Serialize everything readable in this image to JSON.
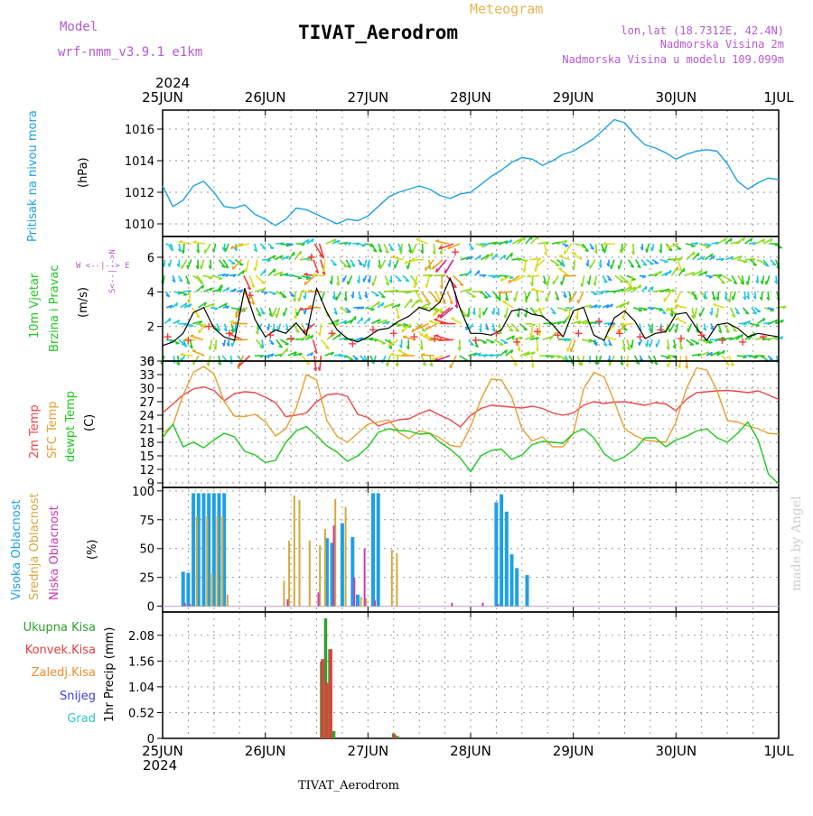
{
  "header": {
    "model_label": "Model",
    "model_name": "wrf-nmm_v3.9.1  e1km",
    "meteogram_label": "Meteogram",
    "station_title": "TIVAT_Aerodrom",
    "lonlat": "lon,lat (18.7312E, 42.4N)",
    "altitude": "Nadmorska Visina 2m",
    "model_altitude": "Nadmorska Visina u modelu 109.099m",
    "year": "2024",
    "footer_station": "TIVAT_Aerodrom",
    "credit": "made by Angel"
  },
  "colors": {
    "pressure": "#1ea0e6",
    "wind_label": "#1ec81e",
    "wind_speed": "#000000",
    "gust": "#f03c3c",
    "t2m": "#f04646",
    "sfc": "#e6a032",
    "dewpoint": "#1ec81e",
    "cloud_high": "#1ea0e6",
    "cloud_mid": "#d2aa3c",
    "cloud_low": "#c83cb4",
    "precip_total": "#2ea02e",
    "precip_conv": "#e63c3c",
    "precip_frozen": "#f08c28",
    "snow": "#3c3cdc",
    "grad": "#28c8c8",
    "header_purple": "#b45ad2",
    "header_orange": "#e6b450"
  },
  "x_axis": {
    "ticks": [
      "25JUN",
      "26JUN",
      "27JUN",
      "28JUN",
      "29JUN",
      "30JUN",
      "1JUL"
    ],
    "start": "2024-06-25",
    "end": "2024-07-01"
  },
  "panel_labels": {
    "pressure": {
      "name": "Pritisak na nivou mora",
      "unit": "(hPa)"
    },
    "wind": {
      "line1": "10m Vjetar",
      "line2": "Brzina i Pravac",
      "unit": "(m/s)",
      "compass_ns": "S<--|-->N",
      "compass_we": "W <--|--> E"
    },
    "temp": {
      "t2m": "2m Temp",
      "sfc": "SFC Temp",
      "dew": "dewpt Temp",
      "unit": "(C)"
    },
    "cloud": {
      "high": "Visoka Oblacnost",
      "mid": "Srednja Oblacnost",
      "low": "Niska Oblacnost",
      "unit": "(%)"
    },
    "precip": {
      "unit": "1hr Precip (mm)",
      "total": "Ukupna Kisa",
      "conv": "Konvek.Kisa",
      "frozen": "Zaledj.Kisa",
      "snow": "Snijeg",
      "grad": "Grad"
    }
  },
  "chart_data": [
    {
      "type": "line",
      "name": "pressure",
      "ylabel": "(hPa)",
      "ylim": [
        1009.2,
        1017.2
      ],
      "yticks": [
        "1010",
        "1012",
        "1014",
        "1016"
      ],
      "ytick_values": [
        1010,
        1012,
        1014,
        1016
      ],
      "x_days": [
        0,
        0.1,
        0.2,
        0.3,
        0.4,
        0.5,
        0.6,
        0.7,
        0.8,
        0.9,
        1.0,
        1.1,
        1.2,
        1.3,
        1.4,
        1.5,
        1.6,
        1.7,
        1.8,
        1.9,
        2.0,
        2.1,
        2.2,
        2.3,
        2.4,
        2.5,
        2.6,
        2.7,
        2.8,
        2.9,
        3.0,
        3.1,
        3.2,
        3.3,
        3.4,
        3.5,
        3.6,
        3.7,
        3.8,
        3.9,
        4.0,
        4.1,
        4.2,
        4.3,
        4.4,
        4.5,
        4.6,
        4.7,
        4.8,
        4.9,
        5.0,
        5.1,
        5.2,
        5.3,
        5.4,
        5.5,
        5.6,
        5.7,
        5.8,
        5.9,
        6.0
      ],
      "values": [
        1012.4,
        1011.1,
        1011.5,
        1012.4,
        1012.7,
        1012.0,
        1011.1,
        1011.0,
        1011.2,
        1010.6,
        1010.3,
        1009.9,
        1010.3,
        1011.0,
        1010.9,
        1010.6,
        1010.3,
        1010.0,
        1010.3,
        1010.2,
        1010.5,
        1011.1,
        1011.7,
        1012.0,
        1012.2,
        1012.4,
        1012.2,
        1011.8,
        1011.6,
        1011.9,
        1012.0,
        1012.5,
        1013.0,
        1013.4,
        1013.9,
        1014.2,
        1014.1,
        1013.7,
        1014.0,
        1014.4,
        1014.6,
        1015.0,
        1015.4,
        1016.0,
        1016.6,
        1016.4,
        1015.6,
        1015.0,
        1014.8,
        1014.5,
        1014.1,
        1014.4,
        1014.6,
        1014.7,
        1014.6,
        1013.8,
        1012.7,
        1012.2,
        1012.6,
        1012.9,
        1012.8
      ]
    },
    {
      "type": "line",
      "name": "wind",
      "ylabel": "(m/s)",
      "ylim": [
        0,
        7.2
      ],
      "yticks": [
        "0",
        "2",
        "4",
        "6"
      ],
      "ytick_values": [
        0,
        2,
        4,
        6
      ],
      "series": [
        {
          "name": "wind speed",
          "x_days": [
            0,
            0.1,
            0.2,
            0.3,
            0.4,
            0.5,
            0.6,
            0.7,
            0.8,
            0.9,
            1.0,
            1.1,
            1.2,
            1.3,
            1.4,
            1.5,
            1.6,
            1.7,
            1.8,
            1.9,
            2.0,
            2.1,
            2.2,
            2.3,
            2.4,
            2.5,
            2.6,
            2.7,
            2.8,
            2.9,
            3.0,
            3.1,
            3.2,
            3.3,
            3.4,
            3.5,
            3.6,
            3.7,
            3.8,
            3.9,
            4.0,
            4.1,
            4.2,
            4.3,
            4.4,
            4.5,
            4.6,
            4.7,
            4.8,
            4.9,
            5.0,
            5.1,
            5.2,
            5.3,
            5.4,
            5.5,
            5.6,
            5.7,
            5.8,
            5.9,
            6.0
          ],
          "values": [
            0.9,
            1.1,
            1.6,
            2.8,
            3.1,
            1.9,
            1.4,
            1.2,
            4.2,
            2.4,
            1.4,
            1.8,
            1.6,
            2.2,
            1.5,
            4.2,
            2.8,
            1.8,
            1.3,
            1.1,
            1.4,
            1.8,
            1.9,
            2.3,
            2.6,
            3.1,
            2.9,
            3.4,
            4.8,
            3.0,
            1.6,
            1.6,
            1.5,
            1.8,
            2.9,
            3.0,
            2.7,
            2.6,
            2.1,
            1.4,
            2.9,
            3.1,
            1.5,
            1.2,
            2.5,
            2.9,
            2.3,
            1.3,
            1.6,
            1.7,
            2.7,
            2.8,
            1.9,
            1.2,
            2.1,
            2.2,
            1.9,
            1.4,
            1.6,
            1.5,
            1.4
          ]
        },
        {
          "name": "gust",
          "x_days": [
            0.05,
            0.25,
            0.45,
            0.65,
            0.85,
            1.05,
            1.25,
            1.45,
            1.65,
            1.85,
            2.05,
            2.25,
            2.45,
            2.65,
            2.85,
            3.05,
            3.25,
            3.45,
            3.65,
            3.85,
            4.05,
            4.25,
            4.45,
            4.65,
            4.85,
            5.05,
            5.25,
            5.45,
            5.65,
            5.85
          ],
          "values": [
            1.4,
            1.2,
            2.0,
            1.6,
            3.8,
            1.5,
            1.3,
            6.0,
            1.6,
            1.0,
            1.8,
            1.6,
            1.4,
            1.3,
            6.3,
            1.2,
            1.6,
            1.1,
            1.7,
            1.5,
            1.6,
            2.3,
            1.6,
            1.4,
            1.8,
            1.3,
            1.5,
            1.2,
            1.1,
            1.4
          ]
        }
      ]
    },
    {
      "type": "line",
      "name": "temperature",
      "ylabel": "(C)",
      "ylim": [
        8,
        36
      ],
      "yticks": [
        "9",
        "12",
        "15",
        "18",
        "21",
        "24",
        "27",
        "30",
        "33",
        "36"
      ],
      "ytick_values": [
        9,
        12,
        15,
        18,
        21,
        24,
        27,
        30,
        33,
        36
      ],
      "x_days": [
        0,
        0.1,
        0.2,
        0.3,
        0.4,
        0.5,
        0.6,
        0.7,
        0.8,
        0.9,
        1.0,
        1.1,
        1.2,
        1.3,
        1.4,
        1.5,
        1.6,
        1.7,
        1.8,
        1.9,
        2.0,
        2.1,
        2.2,
        2.3,
        2.4,
        2.5,
        2.6,
        2.7,
        2.8,
        2.9,
        3.0,
        3.1,
        3.2,
        3.3,
        3.4,
        3.5,
        3.6,
        3.7,
        3.8,
        3.9,
        4.0,
        4.1,
        4.2,
        4.3,
        4.4,
        4.5,
        4.6,
        4.7,
        4.8,
        4.9,
        5.0,
        5.1,
        5.2,
        5.3,
        5.4,
        5.5,
        5.6,
        5.7,
        5.8,
        5.9,
        6.0
      ],
      "series": [
        {
          "name": "2m Temp",
          "values": [
            24.5,
            26.5,
            28.5,
            29.8,
            30.3,
            29.5,
            27.2,
            28.8,
            29.2,
            29.0,
            28.0,
            26.8,
            23.7,
            24.0,
            24.5,
            27.0,
            28.5,
            28.8,
            28.2,
            24.2,
            23.5,
            21.6,
            22.4,
            23.0,
            23.2,
            24.3,
            25.2,
            24.0,
            23.0,
            21.4,
            24.0,
            25.5,
            26.2,
            26.0,
            25.8,
            25.6,
            26.0,
            25.5,
            24.5,
            24.0,
            24.5,
            26.2,
            27.0,
            26.6,
            26.9,
            27.0,
            26.6,
            26.2,
            26.8,
            26.5,
            25.0,
            27.5,
            29.0,
            29.2,
            29.4,
            29.5,
            29.3,
            29.0,
            29.4,
            28.5,
            27.5
          ]
        },
        {
          "name": "SFC Temp",
          "values": [
            20.0,
            21.8,
            28.5,
            33.5,
            34.8,
            33.2,
            27.0,
            23.8,
            23.7,
            24.2,
            22.6,
            19.4,
            21.0,
            25.5,
            33.0,
            31.8,
            22.8,
            19.3,
            18.0,
            20.0,
            22.0,
            22.5,
            23.0,
            20.2,
            18.8,
            20.6,
            20.0,
            19.0,
            17.3,
            17.0,
            21.5,
            27.5,
            32.0,
            31.8,
            28.0,
            21.0,
            18.3,
            19.2,
            17.0,
            17.0,
            20.0,
            29.8,
            33.5,
            32.5,
            27.0,
            21.0,
            19.5,
            18.5,
            18.2,
            18.0,
            22.5,
            29.8,
            34.5,
            34.0,
            29.5,
            22.8,
            22.5,
            21.6,
            21.0,
            20.0,
            19.8
          ]
        },
        {
          "name": "dewpt Temp",
          "values": [
            19.0,
            22.0,
            17.0,
            18.0,
            16.8,
            18.5,
            20.0,
            19.2,
            16.0,
            15.2,
            13.5,
            14.0,
            18.0,
            20.5,
            21.5,
            19.5,
            17.2,
            15.8,
            13.8,
            15.0,
            17.0,
            20.2,
            21.0,
            20.6,
            20.5,
            19.8,
            20.0,
            18.0,
            16.5,
            14.5,
            11.5,
            15.0,
            16.2,
            16.5,
            14.2,
            15.2,
            17.5,
            18.2,
            18.0,
            17.8,
            20.0,
            21.0,
            19.0,
            15.5,
            13.8,
            14.8,
            16.5,
            19.0,
            19.0,
            17.0,
            18.5,
            19.3,
            20.5,
            21.0,
            19.0,
            18.0,
            20.0,
            22.5,
            18.5,
            11.0,
            8.8
          ]
        }
      ]
    },
    {
      "type": "bar",
      "name": "cloud cover",
      "ylabel": "(%)",
      "ylim": [
        -5,
        103
      ],
      "yticks": [
        "0",
        "25",
        "50",
        "75",
        "100"
      ],
      "ytick_values": [
        0,
        25,
        50,
        75,
        100
      ],
      "series": [
        {
          "name": "Visoka Oblacnost",
          "x_days": [
            0.2,
            0.25,
            0.3,
            0.35,
            0.4,
            0.45,
            0.5,
            0.55,
            0.6,
            1.6,
            1.65,
            1.75,
            1.85,
            1.9,
            2.05,
            2.1,
            3.25,
            3.3,
            3.35,
            3.4,
            3.45,
            3.55
          ],
          "values": [
            30,
            29,
            98,
            98,
            98,
            98,
            98,
            98,
            98,
            59,
            55,
            72,
            60,
            10,
            98,
            98,
            90,
            97,
            82,
            45,
            33,
            27
          ]
        },
        {
          "name": "Srednja Oblacnost",
          "x_days": [
            0.35,
            0.45,
            0.5,
            0.55,
            0.6,
            0.65,
            1.2,
            1.25,
            1.3,
            1.35,
            1.45,
            1.55,
            1.6,
            1.7,
            1.8,
            1.95,
            2.0,
            2.25,
            2.3
          ],
          "values": [
            78,
            78,
            28,
            78,
            78,
            10,
            22,
            57,
            96,
            92,
            57,
            53,
            67,
            93,
            86,
            8,
            7,
            49,
            46
          ]
        },
        {
          "name": "Niska Oblacnost",
          "x_days": [
            0.2,
            0.25,
            1.2,
            1.5,
            1.65,
            1.85,
            1.95,
            2.05,
            2.8,
            3.1,
            3.25
          ],
          "values": [
            3,
            2,
            6,
            12,
            70,
            25,
            50,
            5,
            3,
            3,
            2
          ]
        }
      ]
    },
    {
      "type": "bar",
      "name": "precipitation",
      "ylabel": "1hr Precip (mm)",
      "ylim": [
        0,
        2.55
      ],
      "yticks": [
        "0",
        "0.52",
        "1.04",
        "1.56",
        "2.08"
      ],
      "ytick_values": [
        0,
        0.52,
        1.04,
        1.56,
        2.08
      ],
      "series": [
        {
          "name": "Ukupna Kisa",
          "x_days": [
            1.55,
            1.59,
            1.63,
            1.67,
            2.25,
            2.29
          ],
          "values": [
            1.55,
            2.42,
            1.8,
            0.15,
            0.1,
            0.05
          ]
        },
        {
          "name": "Konvek.Kisa",
          "x_days": [
            1.56,
            1.6,
            1.64,
            2.26
          ],
          "values": [
            1.6,
            1.12,
            1.8,
            0.08
          ]
        }
      ]
    }
  ]
}
